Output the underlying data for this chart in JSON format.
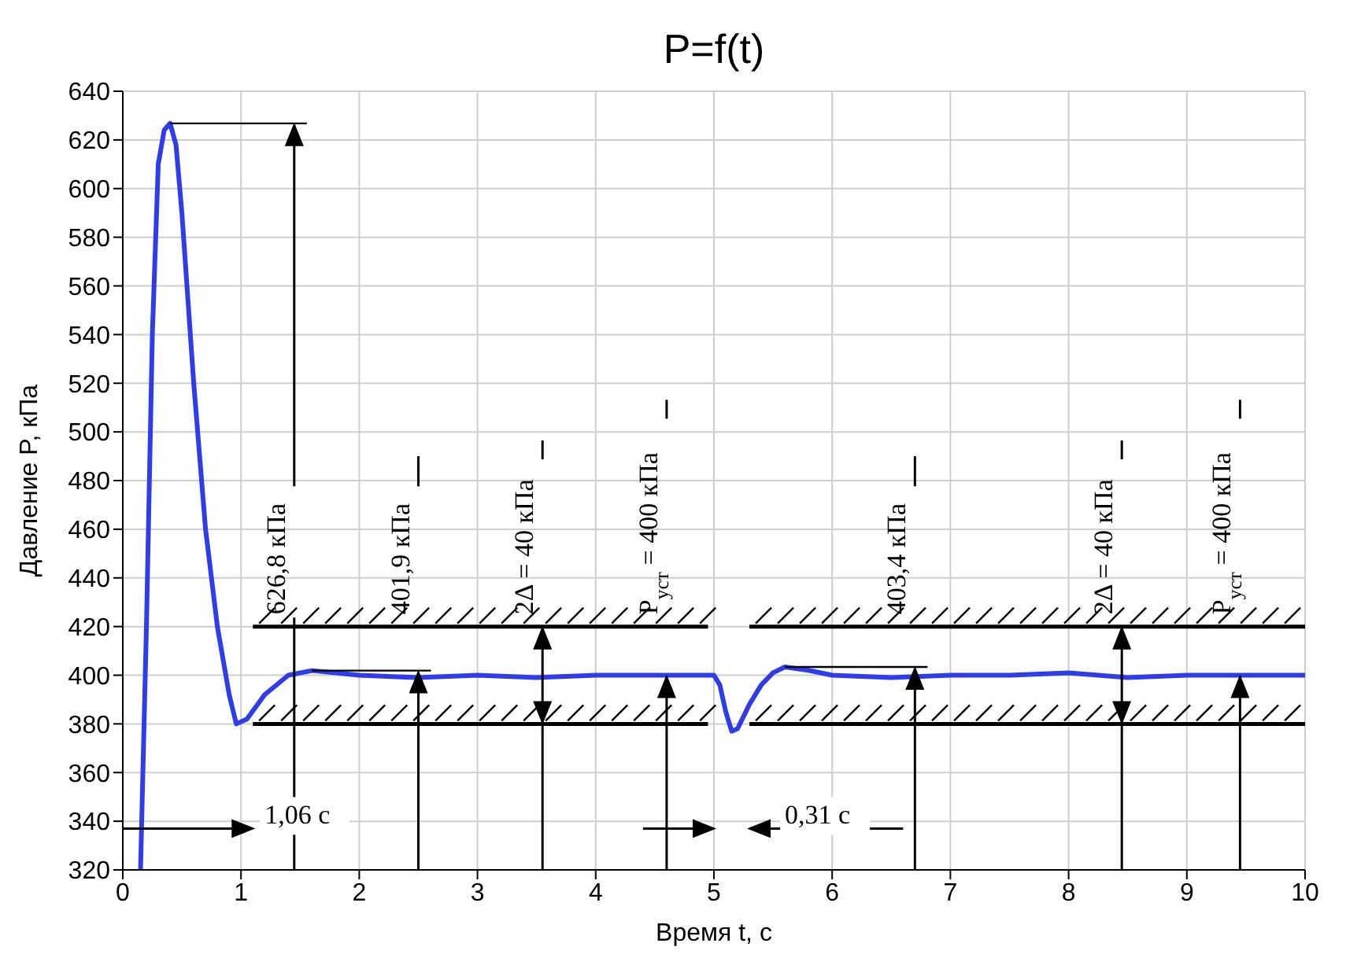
{
  "chart_data": {
    "type": "line",
    "title": "P=f(t)",
    "xlabel": "Время t, с",
    "ylabel": "Давление P, кПа",
    "x": [
      0.15,
      0.2,
      0.25,
      0.3,
      0.35,
      0.4,
      0.45,
      0.5,
      0.6,
      0.7,
      0.8,
      0.9,
      0.96,
      1.05,
      1.2,
      1.4,
      1.6,
      1.8,
      2,
      2.5,
      3,
      3.5,
      4,
      4.5,
      5,
      5.05,
      5.1,
      5.15,
      5.2,
      5.3,
      5.4,
      5.5,
      5.6,
      5.8,
      6,
      6.5,
      7,
      7.5,
      8,
      8.5,
      9,
      9.5,
      10
    ],
    "series": [
      {
        "color": "#2e3cf0",
        "values": [
          320,
          420,
          540,
          610,
          624,
          626.8,
          618,
          590,
          520,
          460,
          420,
          392,
          380,
          382,
          392,
          400,
          401.9,
          401,
          400,
          399,
          400,
          399,
          400,
          400,
          400,
          396,
          385,
          377,
          378,
          388,
          396,
          401,
          403.4,
          402,
          400,
          399,
          400,
          400,
          401,
          399,
          400,
          400,
          400
        ]
      },
      {
        "color": "#000000",
        "x": [
          1.1,
          4.95,
          5.1,
          5.3,
          10
        ],
        "values": [
          420,
          420,
          null,
          420,
          420
        ]
      },
      {
        "color": "#000000",
        "x": [
          1.1,
          4.95,
          5.1,
          5.3,
          10
        ],
        "values": [
          380,
          380,
          null,
          380,
          380
        ]
      }
    ],
    "xlim": [
      0,
      10
    ],
    "xticks": [
      0,
      1,
      2,
      3,
      4,
      5,
      6,
      7,
      8,
      9,
      10
    ],
    "ylim": [
      320,
      640
    ],
    "yticks": [
      320,
      340,
      360,
      380,
      400,
      420,
      440,
      460,
      480,
      500,
      520,
      540,
      560,
      580,
      600,
      620,
      640
    ],
    "grid": true,
    "marker": "none",
    "line_style": "solid",
    "annotations": [
      "626,8 кПа",
      {
        "text": "401,9 кПа",
        "x": 2.5,
        "y": 401.9
      },
      {
        "text": "2Δ = 40 кПа",
        "x": 3.55,
        "y": 420
      },
      {
        "text": "P$_{уст}$ = 400 кПа",
        "x": 4.6,
        "y": 400
      },
      {
        "text": "403,4 кПа",
        "x": 6.7,
        "y": 403.4
      },
      {
        "text": "2Δ = 40 кПа",
        "x": 8.45,
        "y": 420
      },
      {
        "text": "P$_{уст}$ = 400 кПа",
        "x": 9.45,
        "y": 400
      },
      "1,06 с",
      "0,31 с"
    ]
  }
}
